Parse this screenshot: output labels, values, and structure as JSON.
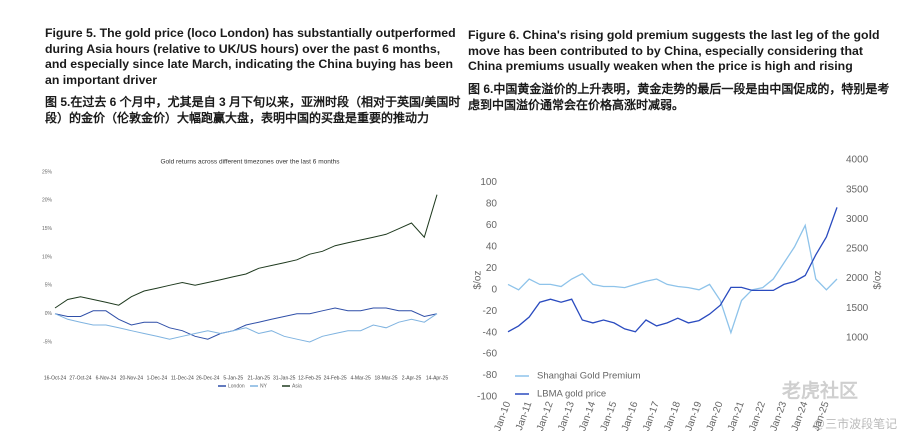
{
  "chart_data": [
    {
      "type": "line",
      "caption": "Figure 5. The gold price (loco London) has substantially outperformed during Asia hours (relative to UK/US hours) over the past 6 months, and especially since late March, indicating the China buying has been an important driver",
      "caption_cn": "图 5.在过去 6 个月中，尤其是自 3 月下旬以来，亚洲时段（相对于英国/美国时段）的金价（伦敦金价）大幅跑赢大盘，表明中国的买盘是重要的推动力",
      "title": "Gold returns across different timezones over the last 6 months",
      "categories": [
        "16-Oct-24",
        null,
        "27-Oct-24",
        null,
        "6-Nov-24",
        null,
        "20-Nov-24",
        null,
        "1-Dec-24",
        null,
        "11-Dec-24",
        null,
        "26-Dec-24",
        null,
        "5-Jan-25",
        null,
        "21-Jan-25",
        null,
        "31-Jan-25",
        null,
        "12-Feb-25",
        null,
        "24-Feb-25",
        null,
        "4-Mar-25",
        null,
        "18-Mar-25",
        null,
        "2-Apr-25",
        null,
        "14-Apr-25"
      ],
      "series": [
        {
          "name": "London",
          "color": "#2f4fa8",
          "values": [
            0,
            -0.5,
            -0.5,
            0.5,
            0.5,
            -1,
            -2,
            -1.5,
            -1.5,
            -2.5,
            -3,
            -4,
            -4.5,
            -3.5,
            -3,
            -2,
            -1.5,
            -1,
            -0.5,
            0,
            0,
            0.5,
            1,
            0.5,
            0.5,
            1,
            1,
            0.5,
            0.5,
            -0.5,
            0
          ]
        },
        {
          "name": "NY",
          "color": "#7fb3e0",
          "values": [
            0,
            -1,
            -1.5,
            -2,
            -2,
            -2.5,
            -3,
            -3.5,
            -4,
            -4.5,
            -4,
            -3.5,
            -3,
            -3.5,
            -3,
            -2.5,
            -3.5,
            -3,
            -4,
            -4.5,
            -5,
            -4,
            -3.5,
            -3,
            -3,
            -2,
            -2.5,
            -1.5,
            -1,
            -1.5,
            0
          ]
        },
        {
          "name": "Asia",
          "color": "#1f3a1f",
          "values": [
            1,
            2.5,
            3,
            2.5,
            2,
            1.5,
            3,
            4,
            4.5,
            5,
            5.5,
            5,
            5.5,
            6,
            6.5,
            7,
            8,
            8.5,
            9,
            9.5,
            10.5,
            11,
            12,
            12.5,
            13,
            13.5,
            14,
            15,
            16,
            13.5,
            21
          ]
        }
      ],
      "ylim": [
        -5,
        25
      ],
      "yticks": [
        {
          "value": 25,
          "label": "25%"
        },
        {
          "value": 20,
          "label": "20%"
        },
        {
          "value": 15,
          "label": "15%"
        },
        {
          "value": 10,
          "label": "10%"
        },
        {
          "value": 5,
          "label": "5%"
        },
        {
          "value": 0,
          "label": "0%"
        },
        {
          "value": -5,
          "label": "-5%"
        }
      ],
      "grid": false,
      "legend": "bottom"
    },
    {
      "type": "line",
      "caption": "Figure 6. China's rising gold premium suggests the last leg of the gold move has been contributed to by China, especially considering that China premiums usually weaken when the price is high and rising",
      "caption_cn": "图 6.中国黄金溢价的上升表明，黄金走势的最后一段是由中国促成的，特别是考虑到中国溢价通常会在价格高涨时减弱。",
      "categories": [
        "Jan-10",
        null,
        "Jan-11",
        null,
        "Jan-12",
        null,
        "Jan-13",
        null,
        "Jan-14",
        null,
        "Jan-15",
        null,
        "Jan-16",
        null,
        "Jan-17",
        null,
        "Jan-18",
        null,
        "Jan-19",
        null,
        "Jan-20",
        null,
        "Jan-21",
        null,
        "Jan-22",
        null,
        "Jan-23",
        null,
        "Jan-24",
        null,
        "Jan-25",
        null
      ],
      "series": [
        {
          "name": "Shanghai Gold Premium",
          "color": "#8ec3ea",
          "values": [
            5,
            0,
            10,
            5,
            5,
            3,
            10,
            15,
            5,
            3,
            3,
            2,
            5,
            8,
            10,
            5,
            3,
            2,
            0,
            5,
            -10,
            -40,
            -10,
            0,
            2,
            10,
            25,
            40,
            60,
            10,
            0,
            10
          ]
        },
        {
          "name": "LBMA gold price",
          "color": "#2a4bbf",
          "axis": "y2",
          "values": [
            1100,
            1200,
            1350,
            1600,
            1650,
            1600,
            1650,
            1300,
            1250,
            1300,
            1250,
            1150,
            1100,
            1300,
            1200,
            1250,
            1330,
            1250,
            1290,
            1400,
            1550,
            1850,
            1850,
            1800,
            1800,
            1800,
            1900,
            1950,
            2050,
            2400,
            2700,
            3200
          ]
        }
      ],
      "ylim": [
        -100,
        121
      ],
      "yticks": [
        100,
        80,
        60,
        40,
        20,
        0,
        -20,
        -40,
        -60,
        -80,
        -100
      ],
      "y2lim": [
        0,
        4000
      ],
      "y2ticks": [
        4000,
        3500,
        3000,
        2500,
        2000,
        1500,
        1000
      ],
      "ylabel": "$/oz",
      "y2label": "$/oz",
      "grid": false,
      "legend": "lower left"
    }
  ],
  "watermark": [
    "老虎社区",
    "@三市波段笔记"
  ]
}
